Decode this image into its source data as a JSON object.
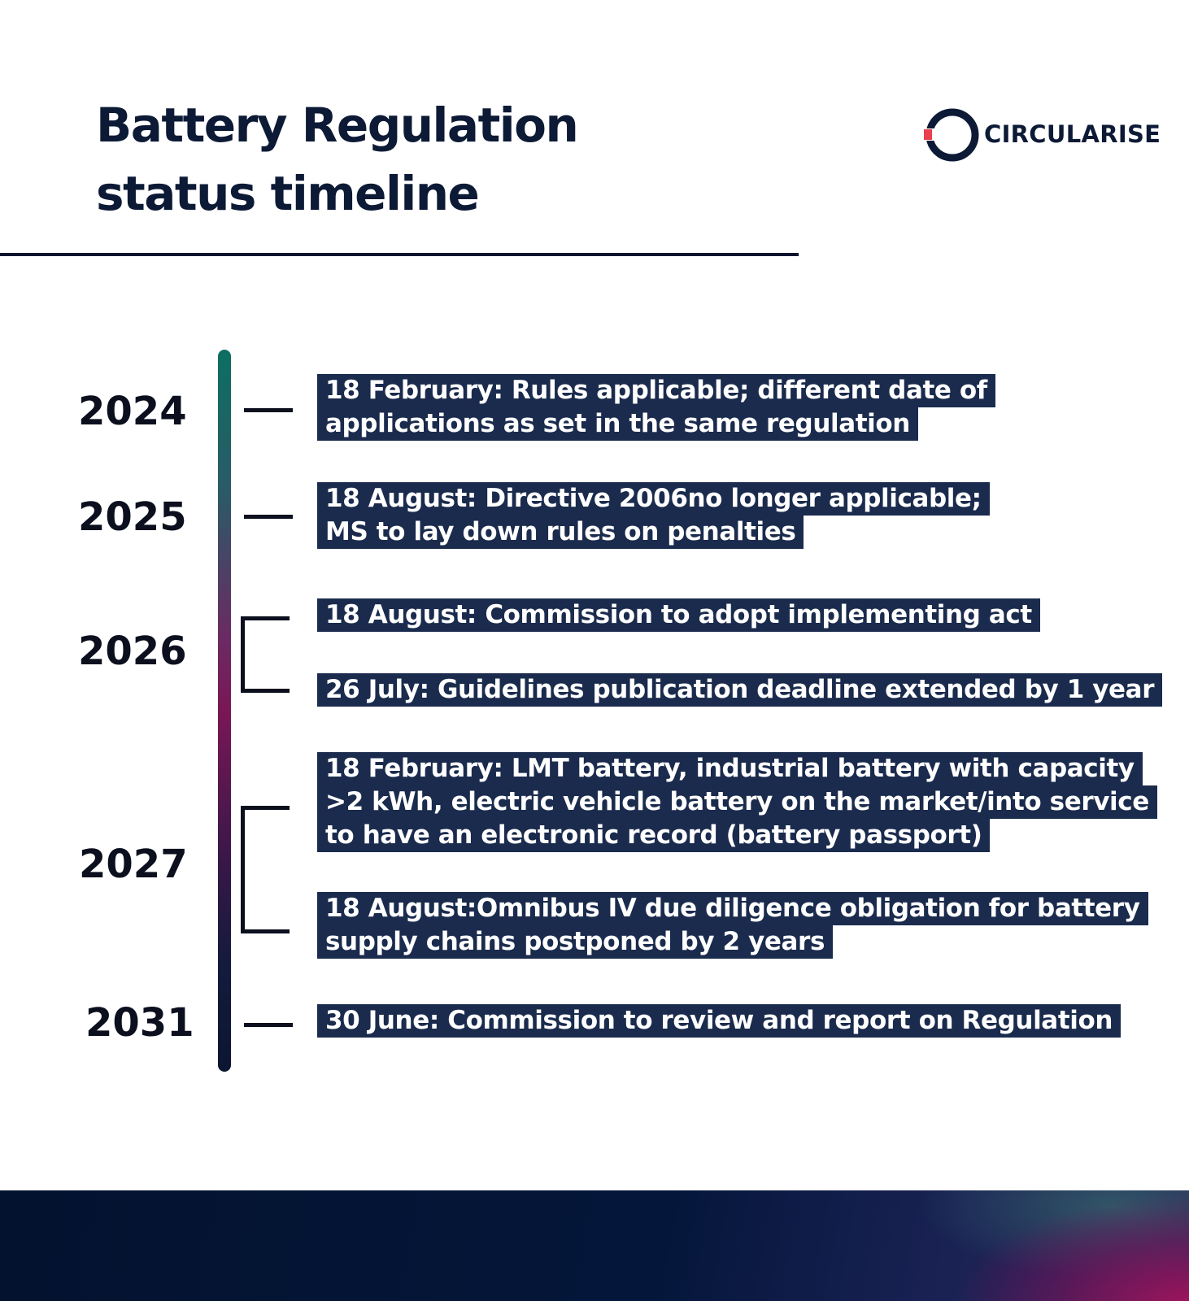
{
  "header": {
    "title_line1": "Battery Regulation",
    "title_line2": "status timeline",
    "logo_text": "CIRCULARISE"
  },
  "timeline": {
    "years": [
      "2024",
      "2025",
      "2026",
      "2027",
      "2031"
    ],
    "events": [
      {
        "year": "2024",
        "lines": [
          "18 February: Rules applicable; different date of",
          "applications as set in the same regulation"
        ]
      },
      {
        "year": "2025",
        "lines": [
          "18 August: Directive 2006no longer applicable;",
          "MS to lay down rules on penalties"
        ]
      },
      {
        "year": "2026",
        "lines": [
          "18 August: Commission to adopt implementing act"
        ]
      },
      {
        "year": "2026",
        "lines": [
          "26 July: Guidelines publication deadline extended by 1 year"
        ]
      },
      {
        "year": "2027",
        "lines": [
          "18 February: LMT battery, industrial battery with capacity",
          ">2 kWh, electric vehicle battery on the market/into service",
          "to have an electronic record (battery passport)"
        ]
      },
      {
        "year": "2027",
        "lines": [
          "18 August:Omnibus IV due diligence obligation for battery",
          "supply chains postponed by 2 years"
        ]
      },
      {
        "year": "2031",
        "lines": [
          "30 June: Commission to review and report on Regulation"
        ]
      }
    ]
  },
  "colors": {
    "label_background": "#1a2b4d",
    "label_text": "#ffffff",
    "logo_accent": "#e8404c"
  }
}
